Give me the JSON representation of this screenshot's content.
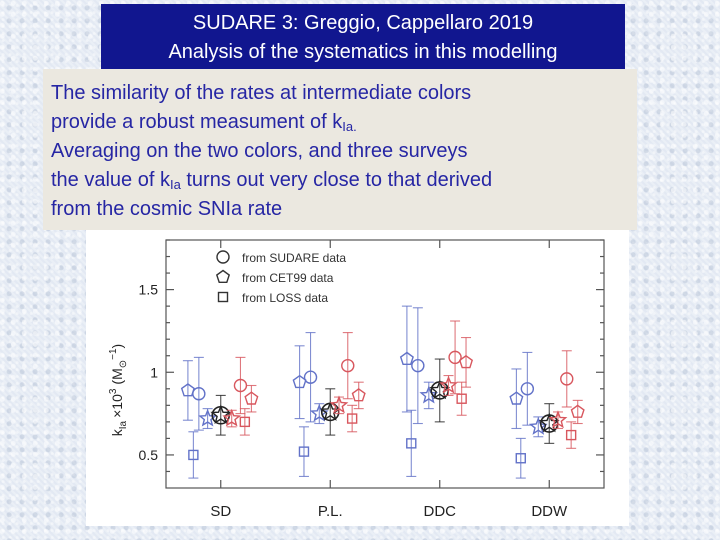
{
  "header": {
    "title_line1": "SUDARE 3: Greggio, Cappellaro 2019",
    "title_line2": "Analysis of the systematics in this modelling"
  },
  "body_text": {
    "line1": "The similarity of the rates at intermediate colors",
    "line2_main": "provide a robust measument of k",
    "line2_sub": "Ia.",
    "line3": "Averaging on the two colors, and three surveys",
    "line4_pre": "the value of k",
    "line4_sub": "Ia",
    "line4_post": " turns out very close to that derived",
    "line5": "from the cosmic SNIa rate"
  },
  "colors": {
    "title_background": "#11168f",
    "title_text": "#ffffff",
    "body_text": "#2626a4",
    "text_box_background": "#ebe8e0",
    "blue_series": "#6272c8",
    "red_series": "#d8575e",
    "black_series": "#222222"
  },
  "chart_data": {
    "type": "scatter",
    "title": "",
    "xlabel": "",
    "ylabel": "k_Ia × 10^3 (M⊙^-1)",
    "ylabel_parts": {
      "symbol": "k",
      "symbol_sub": "Ia",
      "times": "×10",
      "exp": "3",
      "unit_open": "(M",
      "unit_sub": "⊙",
      "unit_exp": "−1",
      "unit_close": ")"
    },
    "categories": [
      "SD",
      "P.L.",
      "DDC",
      "DDW"
    ],
    "ylim": [
      0.3,
      1.8
    ],
    "yticks": [
      0.5,
      1,
      1.5
    ],
    "ytick_labels": [
      "0.5",
      "1",
      "1.5"
    ],
    "legend_position": "top-left",
    "legend": [
      {
        "marker": "circle",
        "label": "from SUDARE data"
      },
      {
        "marker": "pentagon",
        "label": "from CET99 data"
      },
      {
        "marker": "square",
        "label": "from LOSS data"
      }
    ],
    "series": [
      {
        "category": "SD",
        "color": "blue",
        "marker": "pentagon",
        "offset": -0.3,
        "y": 0.89,
        "err": 0.18
      },
      {
        "category": "SD",
        "color": "blue",
        "marker": "circle",
        "offset": -0.2,
        "y": 0.87,
        "err": 0.22
      },
      {
        "category": "SD",
        "color": "blue",
        "marker": "square",
        "offset": -0.25,
        "y": 0.5,
        "err": 0.14
      },
      {
        "category": "SD",
        "color": "blue",
        "marker": "star",
        "offset": -0.12,
        "y": 0.72,
        "err": 0.06
      },
      {
        "category": "SD",
        "color": "black",
        "marker": "star-circle",
        "offset": 0.0,
        "y": 0.74,
        "err": 0.12
      },
      {
        "category": "SD",
        "color": "red",
        "marker": "circle",
        "offset": 0.18,
        "y": 0.92,
        "err": 0.17
      },
      {
        "category": "SD",
        "color": "red",
        "marker": "pentagon",
        "offset": 0.28,
        "y": 0.84,
        "err": 0.08
      },
      {
        "category": "SD",
        "color": "red",
        "marker": "square",
        "offset": 0.22,
        "y": 0.7,
        "err": 0.08
      },
      {
        "category": "SD",
        "color": "red",
        "marker": "star",
        "offset": 0.1,
        "y": 0.72,
        "err": 0.05
      },
      {
        "category": "P.L.",
        "color": "blue",
        "marker": "pentagon",
        "offset": -0.28,
        "y": 0.94,
        "err": 0.22
      },
      {
        "category": "P.L.",
        "color": "blue",
        "marker": "circle",
        "offset": -0.18,
        "y": 0.97,
        "err": 0.27
      },
      {
        "category": "P.L.",
        "color": "blue",
        "marker": "square",
        "offset": -0.24,
        "y": 0.52,
        "err": 0.15
      },
      {
        "category": "P.L.",
        "color": "blue",
        "marker": "star",
        "offset": -0.1,
        "y": 0.75,
        "err": 0.06
      },
      {
        "category": "P.L.",
        "color": "black",
        "marker": "star-circle",
        "offset": 0.0,
        "y": 0.76,
        "err": 0.14
      },
      {
        "category": "P.L.",
        "color": "red",
        "marker": "circle",
        "offset": 0.16,
        "y": 1.04,
        "err": 0.2
      },
      {
        "category": "P.L.",
        "color": "red",
        "marker": "pentagon",
        "offset": 0.26,
        "y": 0.86,
        "err": 0.08
      },
      {
        "category": "P.L.",
        "color": "red",
        "marker": "square",
        "offset": 0.2,
        "y": 0.72,
        "err": 0.08
      },
      {
        "category": "P.L.",
        "color": "red",
        "marker": "star",
        "offset": 0.08,
        "y": 0.8,
        "err": 0.05
      },
      {
        "category": "DDC",
        "color": "blue",
        "marker": "pentagon",
        "offset": -0.3,
        "y": 1.08,
        "err": 0.32
      },
      {
        "category": "DDC",
        "color": "blue",
        "marker": "circle",
        "offset": -0.2,
        "y": 1.04,
        "err": 0.35
      },
      {
        "category": "DDC",
        "color": "blue",
        "marker": "square",
        "offset": -0.26,
        "y": 0.57,
        "err": 0.2
      },
      {
        "category": "DDC",
        "color": "blue",
        "marker": "star",
        "offset": -0.1,
        "y": 0.86,
        "err": 0.08
      },
      {
        "category": "DDC",
        "color": "black",
        "marker": "star-circle",
        "offset": 0.0,
        "y": 0.89,
        "err": 0.19
      },
      {
        "category": "DDC",
        "color": "red",
        "marker": "circle",
        "offset": 0.14,
        "y": 1.09,
        "err": 0.22
      },
      {
        "category": "DDC",
        "color": "red",
        "marker": "pentagon",
        "offset": 0.24,
        "y": 1.06,
        "err": 0.15
      },
      {
        "category": "DDC",
        "color": "red",
        "marker": "square",
        "offset": 0.2,
        "y": 0.84,
        "err": 0.1
      },
      {
        "category": "DDC",
        "color": "red",
        "marker": "star",
        "offset": 0.08,
        "y": 0.92,
        "err": 0.06
      },
      {
        "category": "DDW",
        "color": "blue",
        "marker": "pentagon",
        "offset": -0.3,
        "y": 0.84,
        "err": 0.18
      },
      {
        "category": "DDW",
        "color": "blue",
        "marker": "circle",
        "offset": -0.2,
        "y": 0.9,
        "err": 0.22
      },
      {
        "category": "DDW",
        "color": "blue",
        "marker": "square",
        "offset": -0.26,
        "y": 0.48,
        "err": 0.12
      },
      {
        "category": "DDW",
        "color": "blue",
        "marker": "star",
        "offset": -0.1,
        "y": 0.67,
        "err": 0.06
      },
      {
        "category": "DDW",
        "color": "black",
        "marker": "star-circle",
        "offset": 0.0,
        "y": 0.69,
        "err": 0.12
      },
      {
        "category": "DDW",
        "color": "red",
        "marker": "circle",
        "offset": 0.16,
        "y": 0.96,
        "err": 0.17
      },
      {
        "category": "DDW",
        "color": "red",
        "marker": "pentagon",
        "offset": 0.26,
        "y": 0.76,
        "err": 0.07
      },
      {
        "category": "DDW",
        "color": "red",
        "marker": "square",
        "offset": 0.2,
        "y": 0.62,
        "err": 0.08
      },
      {
        "category": "DDW",
        "color": "red",
        "marker": "star",
        "offset": 0.08,
        "y": 0.71,
        "err": 0.05
      }
    ]
  }
}
